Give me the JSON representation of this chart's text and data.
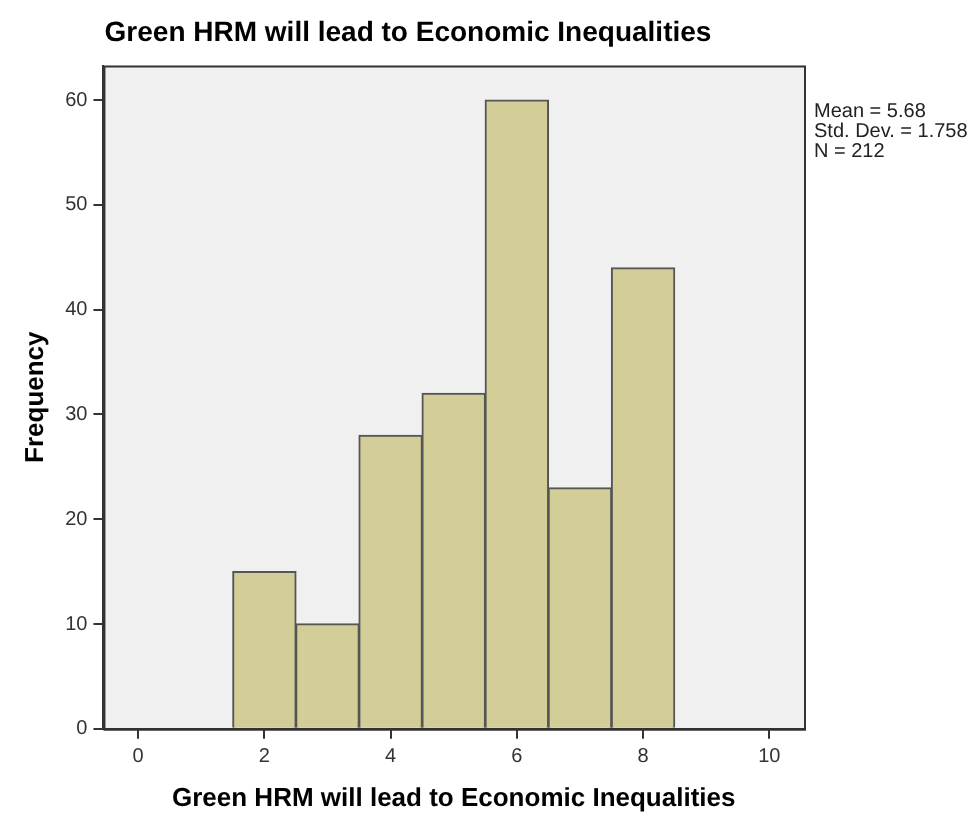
{
  "chart_data": {
    "type": "histogram",
    "title": "Green HRM will lead to Economic Inequalities",
    "xlabel": "Green HRM will lead to Economic Inequalities",
    "ylabel": "Frequency",
    "bins": [
      1.5,
      2.5,
      3.5,
      4.5,
      5.5,
      6.5,
      7.5,
      8.5
    ],
    "values": [
      15,
      10,
      28,
      32,
      60,
      23,
      44
    ],
    "color": "#d3ce97",
    "xlim": [
      -0.55,
      10.55
    ],
    "xticks": [
      0,
      2,
      4,
      6,
      8,
      10
    ],
    "ylim": [
      0,
      63.3
    ],
    "yticks": [
      0,
      10,
      20,
      30,
      40,
      50,
      60
    ],
    "grid": false,
    "legend": false,
    "annotations": [
      "Mean = 5.68",
      "Std. Dev. = 1.758",
      "N = 212"
    ]
  }
}
